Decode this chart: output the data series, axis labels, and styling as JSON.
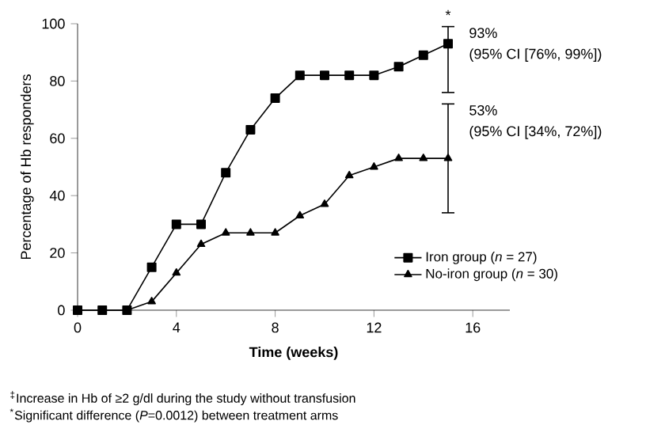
{
  "chart_data": {
    "type": "line",
    "xlabel": "Time (weeks)",
    "ylabel": "Percentage of Hb responders",
    "x": [
      0,
      1,
      2,
      3,
      4,
      5,
      6,
      7,
      8,
      9,
      10,
      11,
      12,
      13,
      14,
      15
    ],
    "series": [
      {
        "name": "Iron group (*n* = 27)",
        "color": "#000000",
        "marker": "square",
        "values": [
          0,
          0,
          0,
          15,
          30,
          30,
          48,
          63,
          74,
          82,
          82,
          82,
          82,
          85,
          89,
          93
        ],
        "errors": [
          null,
          null,
          null,
          null,
          null,
          null,
          null,
          null,
          null,
          null,
          null,
          null,
          null,
          null,
          null,
          [
            76,
            99
          ]
        ]
      },
      {
        "name": "No-iron group (*n* = 30)",
        "color": "#000000",
        "marker": "triangle",
        "values": [
          0,
          0,
          0,
          3,
          13,
          23,
          27,
          27,
          27,
          33,
          37,
          47,
          50,
          53,
          53,
          53
        ],
        "errors": [
          null,
          null,
          null,
          null,
          null,
          null,
          null,
          null,
          null,
          null,
          null,
          null,
          null,
          null,
          null,
          [
            34,
            72
          ]
        ]
      }
    ],
    "xlim": [
      0,
      17.5
    ],
    "xticks": [
      0,
      4,
      8,
      12,
      16
    ],
    "ylim": [
      0,
      100
    ],
    "yticks": [
      0,
      20,
      40,
      60,
      80,
      100
    ],
    "legend": "bottom right",
    "grid": false,
    "line_style": "solid",
    "annotations": [
      "*",
      "93%",
      "(95% CI [76%, 99%])",
      "53%",
      "(95% CI [34%, 72%])",
      "$^{‡}$Increase in Hb of ≥2 g/dl during the study without transfusion",
      "$^{*}$Significant difference (*P*=0.0012) between treatment arms"
    ]
  }
}
